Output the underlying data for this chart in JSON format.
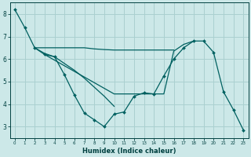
{
  "xlabel": "Humidex (Indice chaleur)",
  "x": [
    0,
    1,
    2,
    3,
    4,
    5,
    6,
    7,
    8,
    9,
    10,
    11,
    12,
    13,
    14,
    15,
    16,
    17,
    18,
    19,
    20,
    21,
    22,
    23
  ],
  "main_y": [
    8.2,
    7.4,
    6.5,
    6.2,
    6.1,
    5.3,
    4.4,
    3.6,
    3.3,
    3.0,
    3.55,
    3.65,
    4.35,
    4.5,
    4.45,
    5.25,
    6.0,
    6.5,
    6.8,
    6.8,
    6.3,
    4.55,
    3.75,
    2.85
  ],
  "line1_x": [
    2,
    3,
    4,
    5,
    6,
    7,
    8,
    9,
    10,
    11,
    12,
    13,
    14,
    15,
    16
  ],
  "line1_y": [
    6.5,
    6.5,
    6.5,
    6.5,
    6.5,
    6.5,
    6.45,
    6.42,
    6.4,
    6.4,
    6.4,
    6.4,
    6.4,
    6.4,
    6.4
  ],
  "line2_x": [
    2,
    3,
    4,
    5,
    6,
    7,
    8,
    9,
    10
  ],
  "line2_y": [
    6.5,
    6.25,
    6.1,
    5.8,
    5.5,
    5.15,
    4.75,
    4.35,
    3.9
  ],
  "line3_x": [
    3,
    10,
    11,
    12,
    13,
    14,
    15,
    16,
    17,
    18
  ],
  "line3_y": [
    6.2,
    4.45,
    4.45,
    4.45,
    4.45,
    4.45,
    4.45,
    6.35,
    6.65,
    6.8
  ],
  "ylim": [
    2.5,
    8.5
  ],
  "xlim": [
    -0.5,
    23.5
  ],
  "yticks": [
    3,
    4,
    5,
    6,
    7,
    8
  ],
  "xticks": [
    0,
    1,
    2,
    3,
    4,
    5,
    6,
    7,
    8,
    9,
    10,
    11,
    12,
    13,
    14,
    15,
    16,
    17,
    18,
    19,
    20,
    21,
    22,
    23
  ],
  "bg_color": "#cce8e8",
  "grid_color": "#aad0d0",
  "line_color": "#006060",
  "text_color": "#004040"
}
